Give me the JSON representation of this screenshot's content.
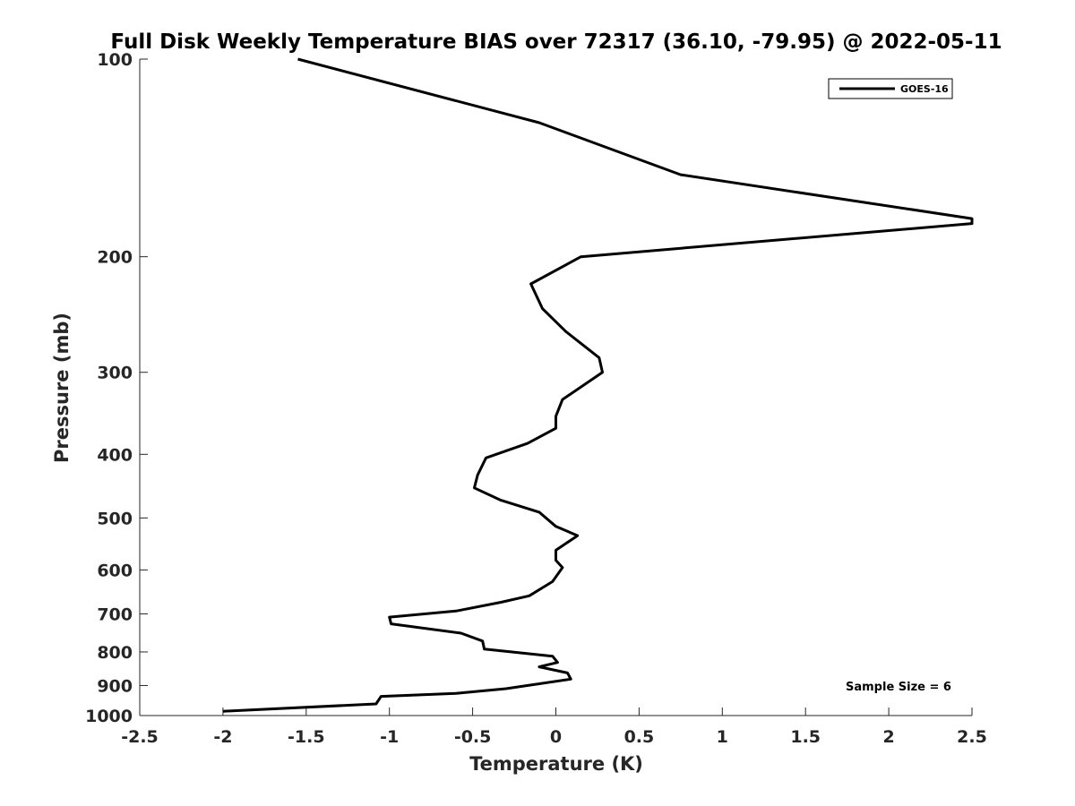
{
  "chart_data": {
    "type": "line",
    "title": "Full Disk Weekly Temperature BIAS over 72317 (36.10, -79.95) @ 2022-05-11",
    "xlabel": "Temperature (K)",
    "ylabel": "Pressure (mb)",
    "xlim": [
      -2.5,
      2.5
    ],
    "ylim": [
      100,
      1000
    ],
    "yscale": "log",
    "yreversed": true,
    "grid": false,
    "legend_position": "top-right",
    "x_ticks": [
      -2.5,
      -2,
      -1.5,
      -1,
      -0.5,
      0,
      0.5,
      1,
      1.5,
      2,
      2.5
    ],
    "x_tick_labels": [
      "-2.5",
      "-2",
      "-1.5",
      "-1",
      "-0.5",
      "0",
      "0.5",
      "1",
      "1.5",
      "2",
      "2.5"
    ],
    "y_ticks": [
      100,
      200,
      300,
      400,
      500,
      600,
      700,
      800,
      900,
      1000
    ],
    "y_tick_labels": [
      "100",
      "200",
      "300",
      "400",
      "500",
      "600",
      "700",
      "800",
      "900",
      "1000"
    ],
    "series": [
      {
        "name": "GOES-16",
        "color": "#000000",
        "points": [
          [
            -1.55,
            100
          ],
          [
            -0.1,
            125
          ],
          [
            0.75,
            150
          ],
          [
            2.5,
            175
          ],
          [
            2.5,
            178
          ],
          [
            0.15,
            200
          ],
          [
            -0.15,
            220
          ],
          [
            -0.08,
            240
          ],
          [
            0.06,
            260
          ],
          [
            0.26,
            285
          ],
          [
            0.28,
            300
          ],
          [
            0.04,
            330
          ],
          [
            0.0,
            350
          ],
          [
            0.0,
            365
          ],
          [
            -0.17,
            385
          ],
          [
            -0.42,
            405
          ],
          [
            -0.47,
            430
          ],
          [
            -0.49,
            450
          ],
          [
            -0.33,
            470
          ],
          [
            -0.1,
            490
          ],
          [
            0.0,
            515
          ],
          [
            0.13,
            532
          ],
          [
            0.0,
            560
          ],
          [
            0.0,
            580
          ],
          [
            0.04,
            595
          ],
          [
            -0.02,
            625
          ],
          [
            -0.16,
            657
          ],
          [
            -0.33,
            672
          ],
          [
            -0.6,
            693
          ],
          [
            -1.0,
            708
          ],
          [
            -0.99,
            725
          ],
          [
            -0.57,
            749
          ],
          [
            -0.44,
            770
          ],
          [
            -0.43,
            792
          ],
          [
            -0.02,
            812
          ],
          [
            0.01,
            830
          ],
          [
            -0.1,
            843
          ],
          [
            0.07,
            861
          ],
          [
            0.09,
            880
          ],
          [
            -0.3,
            910
          ],
          [
            -0.6,
            925
          ],
          [
            -1.05,
            935
          ],
          [
            -1.08,
            960
          ],
          [
            -2.0,
            985
          ]
        ]
      }
    ],
    "annotations": [
      "Sample Size = 6"
    ]
  }
}
